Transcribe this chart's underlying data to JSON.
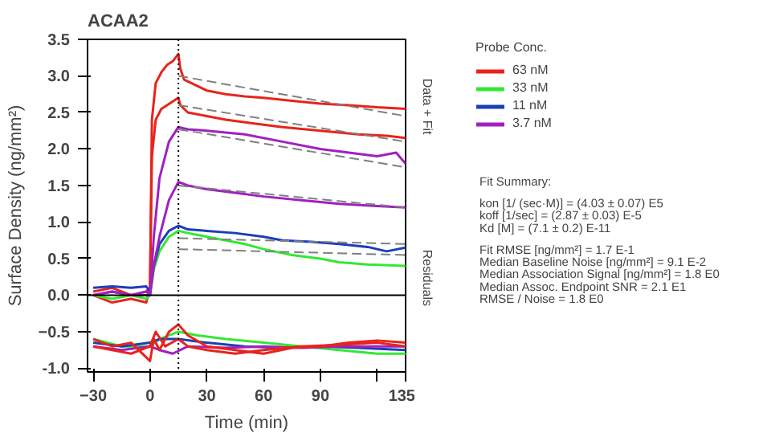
{
  "chart_data": {
    "type": "line",
    "title": "ACAA2",
    "xlabel": "Time (min)",
    "ylabel": "Surface Density (ng/mm²)",
    "legend_title": "Probe Conc.",
    "legend": "right",
    "grid": false,
    "line_style": "solid",
    "marker": "none",
    "xlim": [
      -33,
      135
    ],
    "ylim": [
      -1.05,
      3.5
    ],
    "xticks": [
      -30,
      0,
      30,
      60,
      90,
      {
        "value": 120,
        "label": null
      },
      135
    ],
    "yticks": [
      {
        "value": -1,
        "label": "-1.0"
      },
      -0.5,
      {
        "value": 0,
        "label": "0.0"
      },
      0.5,
      {
        "value": 1,
        "label": "1.0"
      },
      1.5,
      {
        "value": 2,
        "label": "2.0"
      },
      2.5,
      {
        "value": 3,
        "label": "3.0"
      },
      3.5
    ],
    "ref_lines": [
      {
        "axis": "x",
        "value": 15,
        "color": "#000000",
        "line_style": "dotted"
      },
      {
        "axis": "y",
        "value": 0,
        "color": "#000000",
        "line_style": "solid"
      }
    ],
    "annotations": [
      "Data + Fit",
      "Residuals",
      "Fit Summary:",
      "kon  [1/ (sec·M)]  =   (4.03 ± 0.07) E5",
      "koff  [1/sec]  =   (2.87 ± 0.03) E-5",
      "Kd  [M]  =   (7.1 ± 0.2) E-11",
      "Fit RMSE [ng/mm²]  =   1.7 E-1",
      "Median Baseline Noise [ng/mm²]  =   9.1 E-2",
      "Median Association Signal [ng/mm²]  =   1.8 E0",
      "Median Assoc. Endpoint SNR  =   2.1 E1",
      "RMSE / Noise  =   1.8 E0"
    ],
    "series": [
      {
        "name": "63 nM",
        "color": "#e8231c",
        "x": [
          -30,
          -20,
          -10,
          -2,
          0,
          1,
          3,
          6,
          9,
          12,
          15,
          16,
          18,
          22,
          30,
          40,
          50,
          60,
          75,
          90,
          105,
          120,
          135
        ],
        "values": [
          0.0,
          -0.1,
          -0.05,
          -0.1,
          0.1,
          2.4,
          2.9,
          3.05,
          3.15,
          3.2,
          3.3,
          3.1,
          2.95,
          2.9,
          2.8,
          2.75,
          2.72,
          2.7,
          2.66,
          2.62,
          2.6,
          2.57,
          2.55
        ]
      },
      {
        "color": "#e8231c",
        "x": [
          -30,
          -20,
          -10,
          -2,
          0,
          1,
          3,
          6,
          9,
          12,
          15,
          16,
          20,
          30,
          40,
          55,
          70,
          90,
          110,
          125,
          135
        ],
        "values": [
          0.05,
          0.1,
          0.0,
          0.05,
          0.1,
          1.9,
          2.4,
          2.55,
          2.6,
          2.65,
          2.7,
          2.6,
          2.5,
          2.45,
          2.4,
          2.35,
          2.3,
          2.25,
          2.2,
          2.18,
          2.15
        ]
      },
      {
        "name": "33 nM",
        "color": "#33e833",
        "x": [
          -30,
          -20,
          -10,
          -2,
          0,
          2,
          5,
          10,
          15,
          20,
          30,
          40,
          50,
          60,
          75,
          90,
          100,
          115,
          135
        ],
        "values": [
          0.0,
          -0.05,
          0.0,
          -0.05,
          0.0,
          0.35,
          0.6,
          0.8,
          0.88,
          0.85,
          0.8,
          0.75,
          0.7,
          0.63,
          0.55,
          0.5,
          0.45,
          0.42,
          0.4
        ]
      },
      {
        "name": "11 nM",
        "color": "#1b3fb8",
        "x": [
          -30,
          -20,
          -10,
          -2,
          0,
          2,
          5,
          10,
          15,
          20,
          30,
          45,
          60,
          70,
          85,
          100,
          115,
          125,
          135
        ],
        "values": [
          0.1,
          0.12,
          0.1,
          0.12,
          0.05,
          0.4,
          0.7,
          0.88,
          0.95,
          0.9,
          0.88,
          0.85,
          0.8,
          0.75,
          0.73,
          0.7,
          0.66,
          0.6,
          0.65
        ]
      },
      {
        "name": "3.7 nM",
        "color": "#a020c0",
        "x": [
          -30,
          -20,
          -10,
          -2,
          0,
          2,
          5,
          10,
          15,
          20,
          30,
          50,
          70,
          90,
          105,
          120,
          130,
          135
        ],
        "values": [
          0.0,
          0.05,
          0.0,
          0.05,
          0.0,
          0.8,
          1.6,
          2.1,
          2.3,
          2.27,
          2.25,
          2.2,
          2.1,
          2.0,
          1.95,
          1.9,
          1.95,
          1.8
        ]
      },
      {
        "color": "#a020c0",
        "x": [
          -30,
          -20,
          -10,
          -2,
          0,
          2,
          5,
          10,
          15,
          20,
          30,
          45,
          60,
          80,
          100,
          120,
          135
        ],
        "values": [
          0.0,
          0.05,
          0.0,
          0.0,
          0.0,
          0.4,
          0.8,
          1.3,
          1.55,
          1.5,
          1.45,
          1.4,
          1.35,
          1.3,
          1.25,
          1.22,
          1.2
        ]
      },
      {
        "color": "#808080",
        "line_style": "dashed",
        "x": [
          15,
          135
        ],
        "values": [
          3.0,
          2.45
        ]
      },
      {
        "color": "#808080",
        "line_style": "dashed",
        "x": [
          15,
          135
        ],
        "values": [
          2.6,
          2.1
        ]
      },
      {
        "color": "#808080",
        "line_style": "dashed",
        "x": [
          15,
          135
        ],
        "values": [
          2.27,
          1.75
        ]
      },
      {
        "color": "#808080",
        "line_style": "dashed",
        "x": [
          15,
          135
        ],
        "values": [
          1.5,
          1.2
        ]
      },
      {
        "color": "#808080",
        "line_style": "dashed",
        "x": [
          15,
          135
        ],
        "values": [
          0.78,
          0.7
        ]
      },
      {
        "color": "#808080",
        "line_style": "dashed",
        "x": [
          15,
          135
        ],
        "values": [
          0.63,
          0.55
        ]
      },
      {
        "color": "#33e833",
        "x": [
          -30,
          -15,
          0,
          5,
          15,
          25,
          40,
          60,
          80,
          100,
          120,
          135
        ],
        "values": [
          -0.6,
          -0.7,
          -0.7,
          -0.6,
          -0.5,
          -0.55,
          -0.6,
          -0.65,
          -0.7,
          -0.75,
          -0.8,
          -0.8
        ]
      },
      {
        "color": "#1b3fb8",
        "x": [
          -30,
          -15,
          0,
          5,
          15,
          30,
          50,
          70,
          90,
          110,
          135
        ],
        "values": [
          -0.65,
          -0.7,
          -0.65,
          -0.6,
          -0.6,
          -0.65,
          -0.7,
          -0.72,
          -0.7,
          -0.72,
          -0.75
        ]
      },
      {
        "color": "#a020c0",
        "x": [
          -30,
          -15,
          0,
          5,
          12,
          20,
          40,
          60,
          80,
          100,
          120,
          135
        ],
        "values": [
          -0.7,
          -0.75,
          -0.7,
          -0.75,
          -0.8,
          -0.7,
          -0.72,
          -0.7,
          -0.72,
          -0.7,
          -0.7,
          -0.7
        ]
      },
      {
        "color": "#e8231c",
        "x": [
          -30,
          -20,
          -10,
          0,
          2,
          5,
          10,
          15,
          20,
          30,
          45,
          60,
          75,
          90,
          105,
          120,
          135
        ],
        "values": [
          -0.6,
          -0.7,
          -0.65,
          -0.9,
          -0.6,
          -0.75,
          -0.5,
          -0.4,
          -0.55,
          -0.7,
          -0.75,
          -0.8,
          -0.72,
          -0.7,
          -0.65,
          -0.62,
          -0.65
        ]
      },
      {
        "color": "#e8231c",
        "x": [
          -30,
          -20,
          -10,
          0,
          3,
          8,
          15,
          20,
          30,
          45,
          60,
          80,
          100,
          120,
          135
        ],
        "values": [
          -0.7,
          -0.75,
          -0.8,
          -0.7,
          -0.5,
          -0.7,
          -0.6,
          -0.7,
          -0.75,
          -0.8,
          -0.75,
          -0.7,
          -0.68,
          -0.65,
          -0.7
        ]
      }
    ]
  }
}
